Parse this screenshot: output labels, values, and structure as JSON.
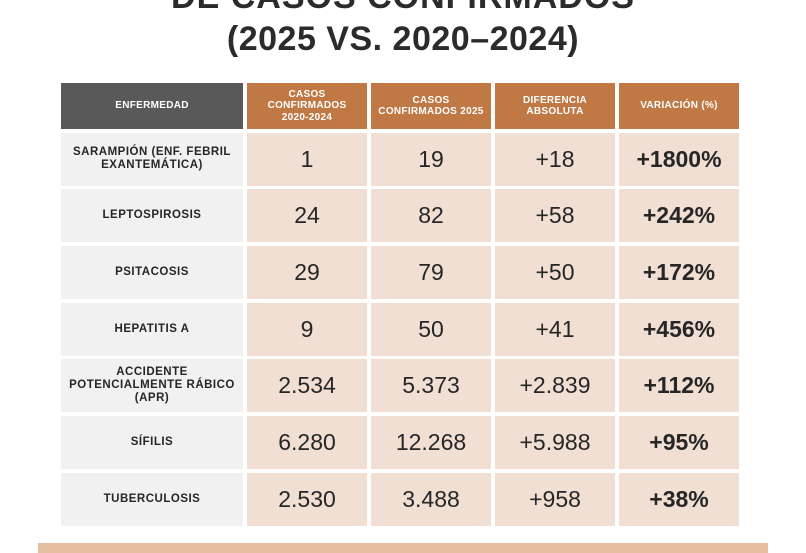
{
  "title": {
    "line1": "DE CASOS CONFIRMADOS",
    "line2": "(2025 VS. 2020–2024)"
  },
  "table": {
    "headers": [
      "ENFERMEDAD",
      "CASOS CONFIRMADOS 2020-2024",
      "CASOS CONFIRMADOS 2025",
      "DIFERENCIA ABSOLUTA",
      "VARIACIÓN (%)"
    ],
    "rows": [
      [
        "SARAMPIÓN (ENF. FEBRIL EXANTEMÁTICA)",
        "1",
        "19",
        "+18",
        "+1800%"
      ],
      [
        "LEPTOSPIROSIS",
        "24",
        "82",
        "+58",
        "+242%"
      ],
      [
        "PSITACOSIS",
        "29",
        "79",
        "+50",
        "+172%"
      ],
      [
        "HEPATITIS A",
        "9",
        "50",
        "+41",
        "+456%"
      ],
      [
        "ACCIDENTE POTENCIALMENTE RÁBICO (APR)",
        "2.534",
        "5.373",
        "+2.839",
        "+112%"
      ],
      [
        "SÍFILIS",
        "6.280",
        "12.268",
        "+5.988",
        "+95%"
      ],
      [
        "TUBERCULOSIS",
        "2.530",
        "3.488",
        "+958",
        "+38%"
      ]
    ]
  },
  "colors": {
    "header_dark": "#595959",
    "header_orange": "#c07845",
    "cell_peach": "#f1dfd3",
    "label_gray": "#f1f1f1",
    "footer_bar": "#e6bfa0"
  }
}
